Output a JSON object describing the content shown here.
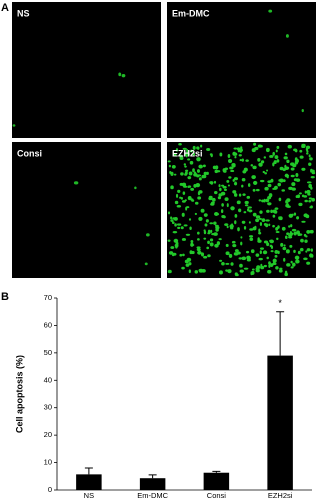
{
  "panel_a": {
    "label": "A",
    "images": [
      {
        "label": "NS"
      },
      {
        "label": "Em-DMC"
      },
      {
        "label": "Consi"
      },
      {
        "label": "EZH2si"
      }
    ]
  },
  "chart_data": {
    "type": "bar",
    "label": "B",
    "y_label": "Cell apoptosis (%)",
    "categories": [
      "NS",
      "Em-DMC",
      "Consi",
      "EZH2si"
    ],
    "values": [
      5.7,
      4.3,
      6.3,
      49
    ],
    "errors": [
      2.3,
      1.2,
      0.5,
      16
    ],
    "color": "#000000",
    "ylim": [
      0,
      70
    ],
    "yticks": [
      0,
      10,
      20,
      30,
      40,
      50,
      60,
      70
    ],
    "annotations": [
      {
        "text": "*",
        "x": "EZH2si"
      }
    ]
  }
}
